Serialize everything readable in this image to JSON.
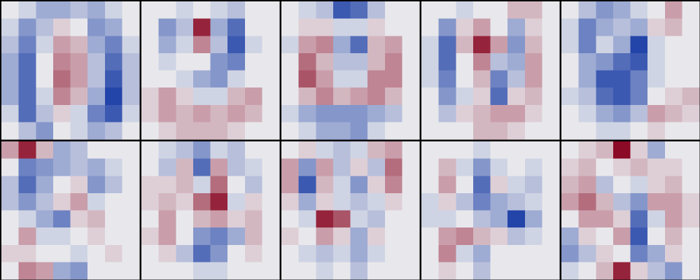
{
  "chart_data": {
    "type": "heatmap",
    "clim": [
      -9,
      9
    ],
    "colormap": [
      "#8b0a25",
      "#e8e8ec",
      "#0a30a0"
    ],
    "columns": 5,
    "panels": [
      {
        "values": [
          [
            0,
            1,
            3,
            3,
            2,
            3,
            1,
            0
          ],
          [
            1,
            4,
            2,
            -1,
            0,
            4,
            3,
            0
          ],
          [
            2,
            5,
            1,
            -3,
            -2,
            3,
            5,
            1
          ],
          [
            3,
            6,
            0,
            -4,
            -3,
            2,
            6,
            2
          ],
          [
            3,
            6,
            0,
            -5,
            -3,
            2,
            7,
            2
          ],
          [
            3,
            6,
            1,
            -4,
            -2,
            3,
            8,
            2
          ],
          [
            1,
            6,
            2,
            -1,
            1,
            5,
            7,
            1
          ],
          [
            0,
            2,
            4,
            0,
            1,
            3,
            2,
            0
          ]
        ]
      },
      {
        "values": [
          [
            0,
            0,
            1,
            0,
            1,
            2,
            0,
            0
          ],
          [
            0,
            4,
            2,
            -8,
            3,
            6,
            0,
            0
          ],
          [
            0,
            3,
            1,
            -4,
            2,
            7,
            1,
            0
          ],
          [
            0,
            1,
            0,
            0,
            4,
            5,
            0,
            0
          ],
          [
            0,
            0,
            1,
            3,
            4,
            1,
            0,
            0
          ],
          [
            -1,
            -3,
            -1,
            1,
            1,
            -2,
            -3,
            0
          ],
          [
            -1,
            -3,
            -2,
            -3,
            -2,
            -3,
            -2,
            0
          ],
          [
            0,
            -1,
            -2,
            -2,
            -2,
            -1,
            0,
            0
          ]
        ]
      },
      {
        "values": [
          [
            0,
            1,
            2,
            7,
            6,
            2,
            0,
            0
          ],
          [
            0,
            -1,
            -1,
            1,
            1,
            -1,
            0,
            0
          ],
          [
            1,
            -3,
            -4,
            3,
            6,
            -2,
            -3,
            0
          ],
          [
            0,
            -5,
            -2,
            2,
            2,
            -2,
            -4,
            0
          ],
          [
            0,
            -6,
            -3,
            1,
            1,
            -4,
            -4,
            0
          ],
          [
            0,
            -2,
            -4,
            -2,
            -3,
            -4,
            -2,
            0
          ],
          [
            1,
            3,
            4,
            4,
            4,
            3,
            2,
            0
          ],
          [
            0,
            1,
            3,
            3,
            4,
            1,
            0,
            0
          ]
        ]
      },
      {
        "values": [
          [
            0,
            0,
            1,
            0,
            0,
            -2,
            -2,
            0
          ],
          [
            0,
            4,
            -1,
            -3,
            0,
            3,
            -1,
            0
          ],
          [
            1,
            6,
            -2,
            -8,
            -3,
            4,
            -2,
            0
          ],
          [
            1,
            6,
            0,
            -4,
            2,
            3,
            -3,
            0
          ],
          [
            1,
            5,
            0,
            -2,
            5,
            2,
            -3,
            0
          ],
          [
            0,
            4,
            1,
            -1,
            6,
            -1,
            -2,
            0
          ],
          [
            0,
            2,
            -1,
            -2,
            -3,
            -3,
            -1,
            0
          ],
          [
            0,
            0,
            0,
            -2,
            -2,
            -1,
            0,
            0
          ]
        ]
      },
      {
        "values": [
          [
            0,
            2,
            4,
            3,
            1,
            0,
            -3,
            0
          ],
          [
            1,
            5,
            3,
            2,
            3,
            -1,
            -2,
            0
          ],
          [
            1,
            5,
            1,
            3,
            8,
            1,
            0,
            0
          ],
          [
            0,
            3,
            4,
            6,
            7,
            1,
            0,
            0
          ],
          [
            0,
            3,
            7,
            7,
            5,
            1,
            0,
            0
          ],
          [
            1,
            2,
            6,
            7,
            5,
            0,
            -1,
            -2
          ],
          [
            0,
            1,
            3,
            4,
            2,
            -3,
            -2,
            -1
          ],
          [
            0,
            0,
            1,
            1,
            0,
            -1,
            0,
            0
          ]
        ]
      },
      {
        "values": [
          [
            -3,
            -8,
            -2,
            3,
            2,
            0,
            0,
            0
          ],
          [
            0,
            5,
            4,
            3,
            2,
            3,
            1,
            0
          ],
          [
            2,
            6,
            3,
            0,
            -1,
            4,
            2,
            0
          ],
          [
            2,
            4,
            2,
            -1,
            -3,
            1,
            0,
            0
          ],
          [
            0,
            1,
            3,
            5,
            -1,
            -2,
            0,
            0
          ],
          [
            0,
            -3,
            1,
            1,
            0,
            -1,
            0,
            0
          ],
          [
            -1,
            -1,
            0,
            0,
            1,
            0,
            -1,
            0
          ],
          [
            0,
            -4,
            -3,
            3,
            4,
            0,
            0,
            0
          ]
        ]
      },
      {
        "values": [
          [
            0,
            1,
            2,
            4,
            1,
            2,
            0,
            0
          ],
          [
            0,
            2,
            -2,
            6,
            -3,
            2,
            1,
            0
          ],
          [
            -1,
            -1,
            -2,
            1,
            -5,
            0,
            2,
            0
          ],
          [
            -1,
            -2,
            -1,
            -5,
            -8,
            1,
            -1,
            0
          ],
          [
            0,
            -3,
            0,
            -2,
            -3,
            -1,
            -2,
            0
          ],
          [
            -1,
            -3,
            0,
            4,
            5,
            3,
            -2,
            0
          ],
          [
            0,
            -1,
            2,
            6,
            4,
            0,
            -1,
            0
          ],
          [
            0,
            0,
            0,
            1,
            1,
            0,
            0,
            0
          ]
        ]
      },
      {
        "values": [
          [
            0,
            -1,
            1,
            2,
            1,
            -2,
            -3,
            0
          ],
          [
            -3,
            4,
            -3,
            2,
            -1,
            2,
            -5,
            0
          ],
          [
            -3,
            7,
            -2,
            1,
            4,
            -1,
            -4,
            0
          ],
          [
            -1,
            3,
            -1,
            1,
            2,
            1,
            -1,
            0
          ],
          [
            0,
            1,
            -8,
            -6,
            1,
            2,
            0,
            0
          ],
          [
            -1,
            0,
            -3,
            -1,
            3,
            -1,
            0,
            0
          ],
          [
            0,
            1,
            2,
            1,
            3,
            1,
            0,
            0
          ],
          [
            0,
            0,
            1,
            0,
            2,
            0,
            0,
            0
          ]
        ]
      },
      {
        "values": [
          [
            0,
            0,
            0,
            1,
            0,
            0,
            0,
            0
          ],
          [
            0,
            -2,
            1,
            4,
            1,
            0,
            1,
            0
          ],
          [
            0,
            -3,
            0,
            6,
            -1,
            1,
            2,
            0
          ],
          [
            1,
            -1,
            2,
            5,
            3,
            2,
            1,
            0
          ],
          [
            1,
            1,
            0,
            2,
            3,
            8,
            3,
            0
          ],
          [
            0,
            -3,
            -4,
            -2,
            -1,
            2,
            1,
            0
          ],
          [
            0,
            -4,
            1,
            3,
            0,
            0,
            0,
            0
          ],
          [
            0,
            -1,
            0,
            2,
            0,
            0,
            0,
            0
          ]
        ]
      },
      {
        "values": [
          [
            0,
            -1,
            -2,
            -9,
            -1,
            3,
            0,
            0
          ],
          [
            -1,
            -2,
            0,
            -1,
            -2,
            -1,
            -1,
            0
          ],
          [
            -2,
            -3,
            2,
            0,
            1,
            -1,
            -2,
            0
          ],
          [
            -3,
            -5,
            -2,
            2,
            4,
            -3,
            -3,
            -1
          ],
          [
            0,
            -3,
            -3,
            -1,
            6,
            1,
            -3,
            -1
          ],
          [
            3,
            -1,
            0,
            -3,
            7,
            0,
            -2,
            0
          ],
          [
            4,
            2,
            -1,
            0,
            5,
            3,
            -1,
            0
          ],
          [
            1,
            0,
            -2,
            -8,
            -1,
            2,
            4,
            0
          ]
        ]
      }
    ]
  }
}
